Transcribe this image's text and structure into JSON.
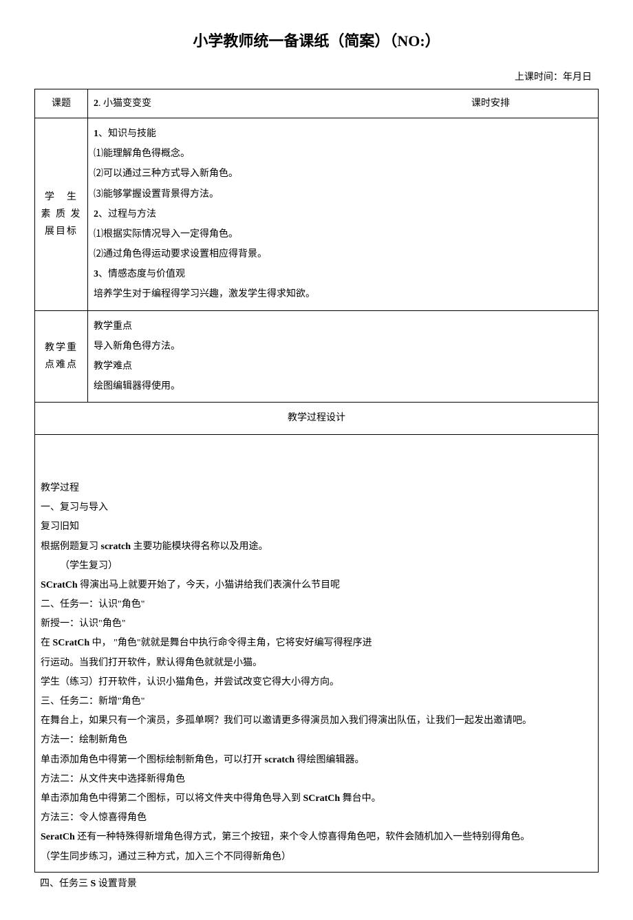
{
  "title_prefix": "小学教师统一备课纸（简案）（",
  "title_no": "NO:",
  "title_suffix": "）",
  "class_time_label": "上课时间：年月日",
  "row1": {
    "header": "课题",
    "topic_bold": "2",
    "topic_text": ". 小猫变变变",
    "schedule": "课时安排"
  },
  "row2": {
    "header": "学　生素 质 发展目标",
    "h1_bold": "1",
    "h1_text": "、知识与技能",
    "l1": "⑴能理解角色得概念。",
    "l2": "⑵可以通过三种方式导入新角色。",
    "l3": "⑶能够掌握设置背景得方法。",
    "h2_bold": "2",
    "h2_text": "、过程与方法",
    "l4": "⑴根据实际情况导入一定得角色。",
    "l5": "⑵通过角色得运动要求设置相应得背景。",
    "h3_bold": "3",
    "h3_text": "、情感态度与价值观",
    "l6": "培养学生对于编程得学习兴趣，激发学生得求知欲。"
  },
  "row3": {
    "header": "教学重点难点",
    "l1": "教学重点",
    "l2": "导入新角色得方法。",
    "l3": "教学难点",
    "l4": "绘图编辑器得使用。"
  },
  "section_header": "教学过程设计",
  "process": {
    "p1": "教学过程",
    "p2": "一、复习与导入",
    "p3": "复习旧知",
    "p4a": "根据例题复习 ",
    "p4b": "scratch",
    "p4c": " 主要功能模块得名称以及用途。",
    "p5": "（学生复习）",
    "p6a": "SCratCh",
    "p6b": " 得演出马上就要开始了，今天，小猫讲给我们表演什么节目呢",
    "p7": "二、任务一：认识\"角色\"",
    "p8": "新授一：认识\"角色\"",
    "p9a": "在 ",
    "p9b": "SCratCh",
    "p9c": " 中， \"角色\"就就是舞台中执行命令得主角，它将安好编写得程序进",
    "p10": "行运动。当我们打开软件，默认得角色就就是小猫。",
    "p11": "学生（练习）打开软件，认识小猫角色，并尝试改变它得大小得方向。",
    "p12": "三、任务二：新增\"角色\"",
    "p13": "在舞台上，如果只有一个演员，多孤单啊？我们可以邀请更多得演员加入我们得演出队伍，让我们一起发出邀请吧。",
    "p14": "方法一：绘制新角色",
    "p15a": "单击添加角色中得第一个图标绘制新角色，可以打开 ",
    "p15b": "scratch",
    "p15c": " 得绘图编辑器。",
    "p16": "方法二：从文件夹中选择新得角色",
    "p17a": "单击添加角色中得第二个图标，可以将文件夹中得角色导入到 ",
    "p17b": "SCratCh",
    "p17c": " 舞台中。",
    "p18": "方法三：令人惊喜得角色",
    "p19a": "SeratCh",
    "p19b": " 还有一种特殊得新增角色得方式，第三个按钮，来个令人惊喜得角色吧，软件会随机加入一些特别得角色。",
    "p20": "（学生同步练习，通过三种方式，加入三个不同得新角色）"
  },
  "after": {
    "a": "四、任务三 ",
    "b": "S",
    "c": " 设置背景"
  }
}
